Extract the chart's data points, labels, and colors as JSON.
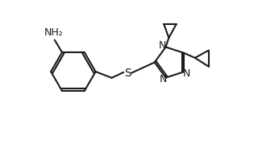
{
  "bg_color": "#ffffff",
  "line_color": "#1a1a1a",
  "text_color": "#1a1a1a",
  "label_nh2": "NH₂",
  "label_S": "S",
  "label_N_top": "N",
  "label_N_bot1": "N",
  "label_N_bot2": "N",
  "linewidth": 1.5,
  "figsize": [
    3.2,
    1.84
  ],
  "dpi": 100
}
